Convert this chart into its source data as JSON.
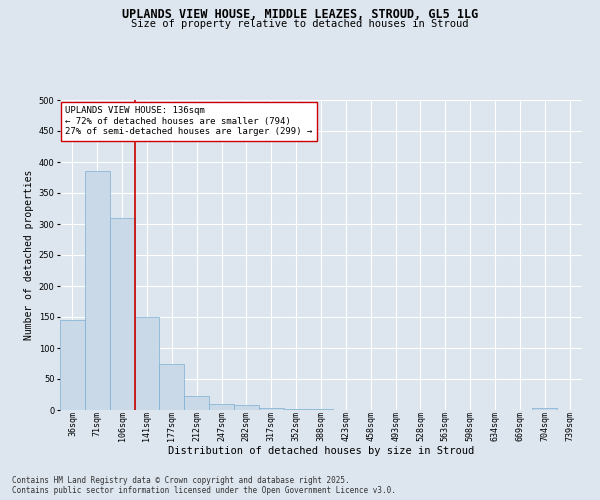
{
  "title_line1": "UPLANDS VIEW HOUSE, MIDDLE LEAZES, STROUD, GL5 1LG",
  "title_line2": "Size of property relative to detached houses in Stroud",
  "xlabel": "Distribution of detached houses by size in Stroud",
  "ylabel": "Number of detached properties",
  "bar_labels": [
    "36sqm",
    "71sqm",
    "106sqm",
    "141sqm",
    "177sqm",
    "212sqm",
    "247sqm",
    "282sqm",
    "317sqm",
    "352sqm",
    "388sqm",
    "423sqm",
    "458sqm",
    "493sqm",
    "528sqm",
    "563sqm",
    "598sqm",
    "634sqm",
    "669sqm",
    "704sqm",
    "739sqm"
  ],
  "bar_values": [
    145,
    385,
    310,
    150,
    75,
    22,
    10,
    8,
    4,
    2,
    1,
    0,
    0,
    0,
    0,
    0,
    0,
    0,
    0,
    4,
    0
  ],
  "bar_color": "#c9d9e8",
  "bar_edge_color": "#7bafd4",
  "annotation_box_text": "UPLANDS VIEW HOUSE: 136sqm\n← 72% of detached houses are smaller (794)\n27% of semi-detached houses are larger (299) →",
  "annotation_box_color": "#ffffff",
  "annotation_box_edge_color": "#cc0000",
  "vline_x": 2.5,
  "vline_color": "#cc0000",
  "vline_linewidth": 1.2,
  "ylim": [
    0,
    500
  ],
  "yticks": [
    0,
    50,
    100,
    150,
    200,
    250,
    300,
    350,
    400,
    450,
    500
  ],
  "background_color": "#dde5ee",
  "plot_bg_color": "#dde5ee",
  "grid_color": "#ffffff",
  "footnote": "Contains HM Land Registry data © Crown copyright and database right 2025.\nContains public sector information licensed under the Open Government Licence v3.0.",
  "title_fontsize": 8.5,
  "subtitle_fontsize": 7.5,
  "xlabel_fontsize": 7.5,
  "ylabel_fontsize": 7.0,
  "tick_fontsize": 6.0,
  "annotation_fontsize": 6.5,
  "footnote_fontsize": 5.5
}
